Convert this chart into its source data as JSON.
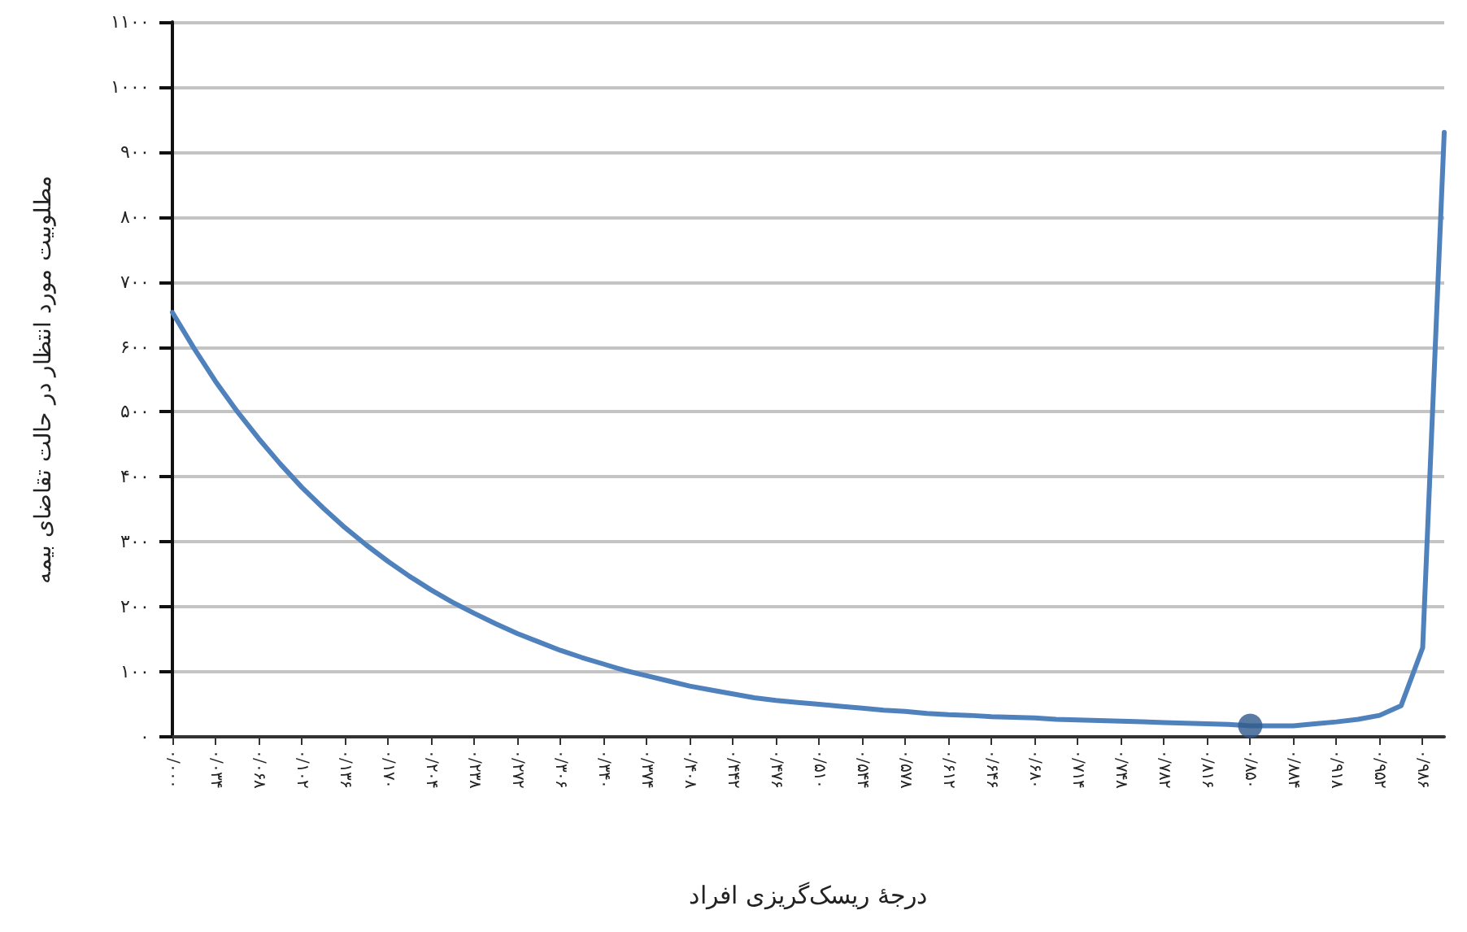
{
  "chart_data": {
    "type": "line",
    "xlabel": "درجهٔ ریسک‌گریزی افراد",
    "ylabel": "مطلوبیت مورد انتظار در حالت تقاضای بیمه",
    "categories": [
      "۰/۰۰۰",
      null,
      "۰/۰۳۴",
      null,
      "۰/۰۶۸",
      null,
      "۰/۱۰۲",
      null,
      "۰/۱۳۶",
      null,
      "۰/۱۷۰",
      null,
      "۰/۲۰۴",
      null,
      "۰/۲۳۸",
      null,
      "۰/۲۷۲",
      null,
      "۰/۳۰۶",
      null,
      "۰/۳۴۰",
      null,
      "۰/۳۷۴",
      null,
      "۰/۴۰۸",
      null,
      "۰/۴۴۲",
      null,
      "۰/۴۷۶",
      null,
      "۰/۵۱۰",
      null,
      "۰/۵۴۴",
      null,
      "۰/۵۷۸",
      null,
      "۰/۶۱۲",
      null,
      "۰/۶۴۶",
      null,
      "۰/۶۸۰",
      null,
      "۰/۷۱۴",
      null,
      "۰/۷۴۸",
      null,
      "۰/۷۸۲",
      null,
      "۰/۸۱۶",
      null,
      "۰/۸۵۰",
      null,
      "۰/۸۸۴",
      null,
      "۰/۹۱۸",
      null,
      "۰/۹۵۲",
      null,
      "۰/۹۸۶",
      null
    ],
    "series": [
      {
        "color": "#4f81bd",
        "values": [
          653,
          598,
          547,
          501,
          459,
          420,
          384,
          352,
          322,
          295,
          270,
          247,
          226,
          207,
          190,
          174,
          159,
          146,
          133,
          122,
          112,
          102,
          94,
          86,
          78,
          72,
          66,
          60,
          56,
          53,
          50,
          47,
          44,
          41,
          39,
          36,
          34,
          33,
          31,
          30,
          29,
          27,
          26,
          25,
          24,
          23,
          22,
          21,
          20,
          19,
          17,
          17,
          17,
          20,
          23,
          27,
          33,
          48,
          137,
          930
        ]
      },
      {
        "type": "scatter",
        "color": "#2f5a8c",
        "marker": "circle",
        "x": [
          "۰/۸۵۰"
        ],
        "values": [
          17
        ]
      }
    ],
    "ylim": [
      0,
      1100
    ],
    "yticks": [
      {
        "value": 0,
        "label": "۰"
      },
      {
        "value": 100,
        "label": "۱۰۰"
      },
      {
        "value": 200,
        "label": "۲۰۰"
      },
      {
        "value": 300,
        "label": "۳۰۰"
      },
      {
        "value": 400,
        "label": "۴۰۰"
      },
      {
        "value": 500,
        "label": "۵۰۰"
      },
      {
        "value": 600,
        "label": "۶۰۰"
      },
      {
        "value": 700,
        "label": "۷۰۰"
      },
      {
        "value": 800,
        "label": "۸۰۰"
      },
      {
        "value": 900,
        "label": "۹۰۰"
      },
      {
        "value": 1000,
        "label": "۱۰۰۰"
      },
      {
        "value": 1100,
        "label": "۱۱۰۰"
      }
    ],
    "grid": "y"
  }
}
